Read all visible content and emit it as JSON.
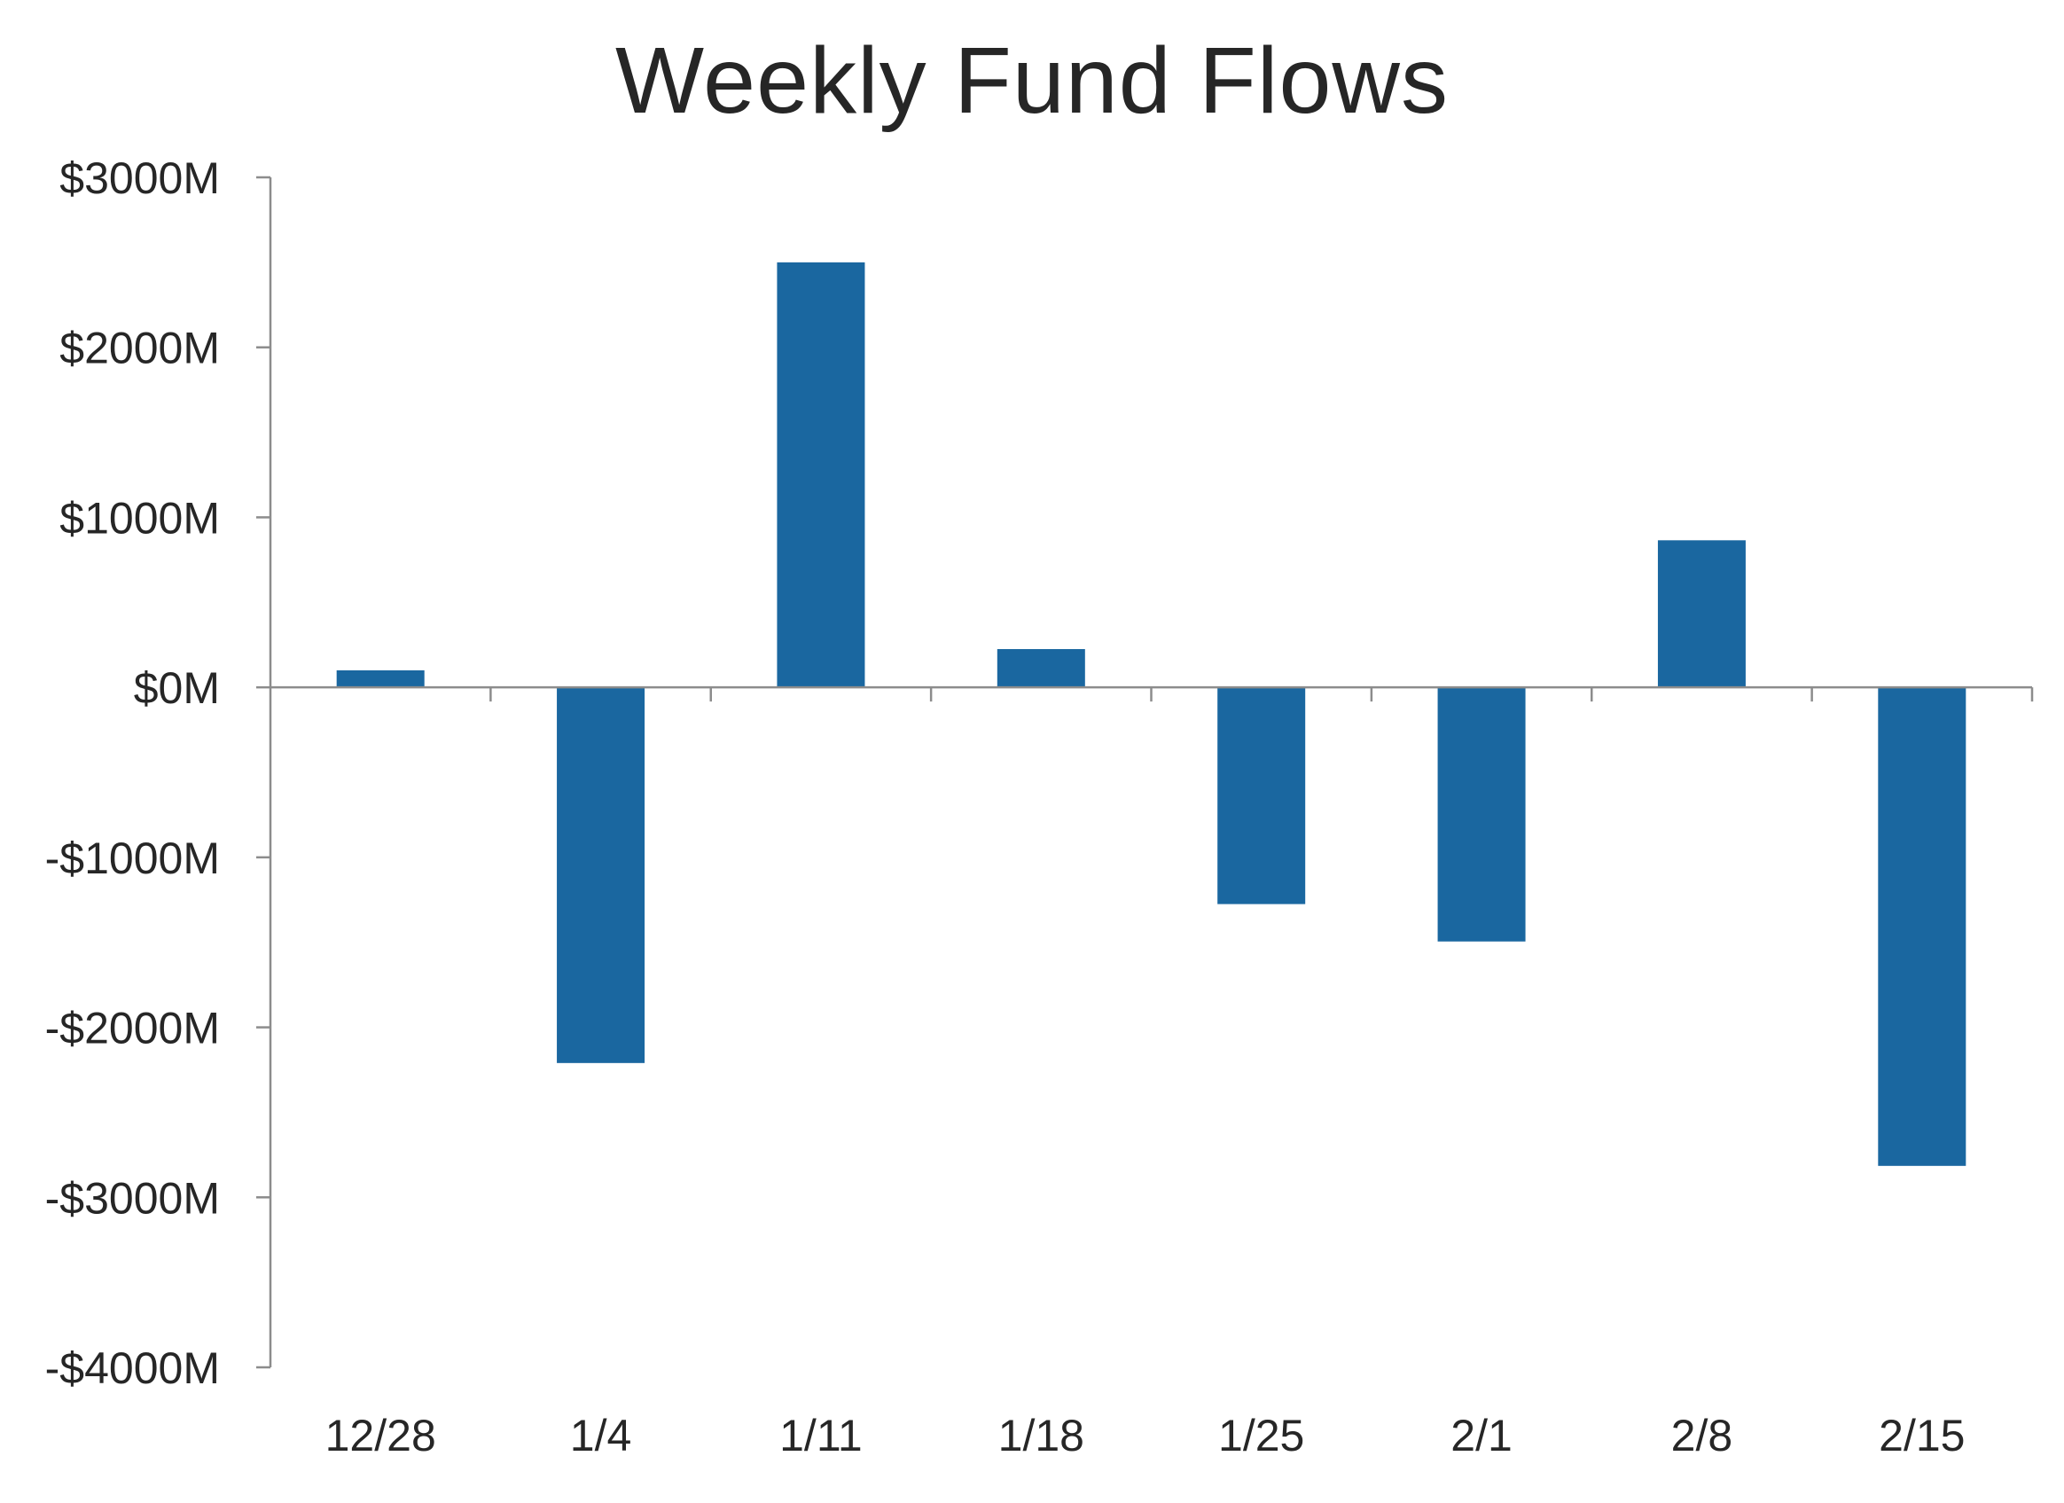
{
  "chart_data": {
    "type": "bar",
    "title": "Weekly Fund Flows",
    "xlabel": "",
    "ylabel": "",
    "categories": [
      "12/28",
      "1/4",
      "1/11",
      "1/18",
      "1/25",
      "2/1",
      "2/8",
      "2/15"
    ],
    "values": [
      100,
      -2210,
      2500,
      225,
      -1275,
      -1495,
      865,
      -2815
    ],
    "ylim": [
      -4000,
      3000
    ],
    "yticks": [
      3000,
      2000,
      1000,
      0,
      -1000,
      -2000,
      -3000,
      -4000
    ],
    "ytick_labels": [
      "$3000M",
      "$2000M",
      "$1000M",
      "$0M",
      "-$1000M",
      "-$2000M",
      "-$3000M",
      "-$4000M"
    ],
    "grid": false,
    "legend": "none",
    "bar_color": "#1a67a0",
    "axis_color": "#8c8c8c",
    "text_color": "#262626"
  }
}
